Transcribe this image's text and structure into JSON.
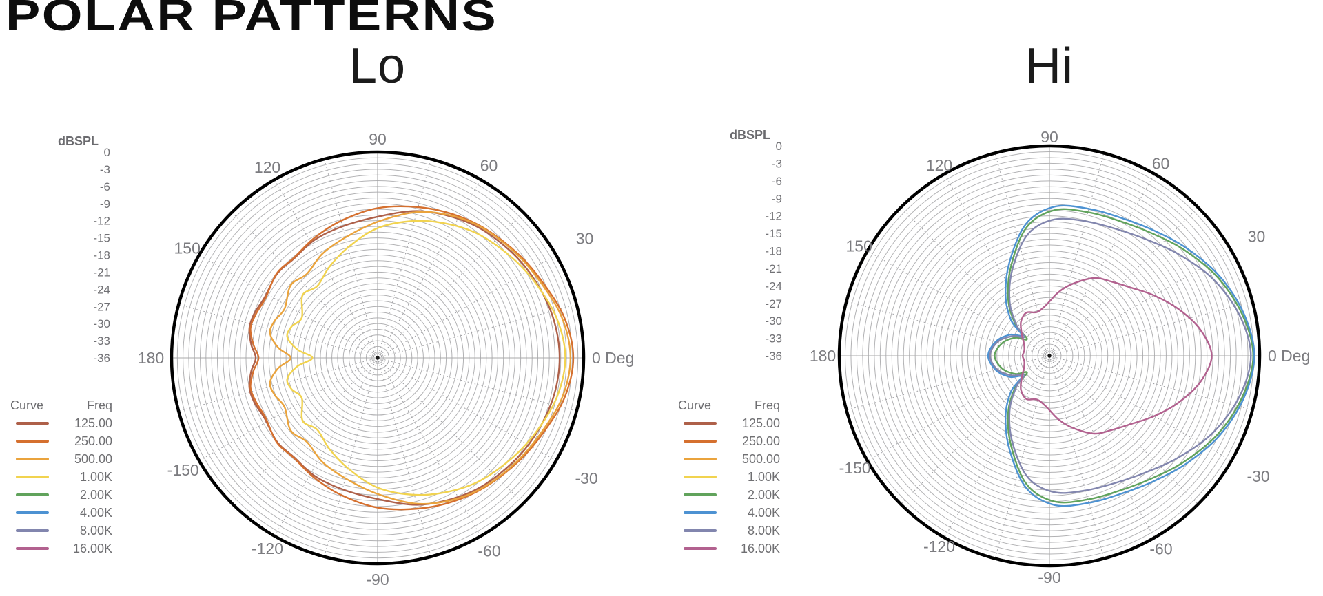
{
  "page": {
    "title": "POLAR PATTERNS",
    "background": "#ffffff"
  },
  "legend": {
    "curve_header": "Curve",
    "freq_header": "Freq",
    "items": [
      {
        "label": "125.00",
        "color": "#ae6049"
      },
      {
        "label": "250.00",
        "color": "#d5702f"
      },
      {
        "label": "500.00",
        "color": "#eaa33c"
      },
      {
        "label": "1.00K",
        "color": "#f1d34f"
      },
      {
        "label": "2.00K",
        "color": "#61a35c"
      },
      {
        "label": "4.00K",
        "color": "#4d92d2"
      },
      {
        "label": "8.00K",
        "color": "#8286ae"
      },
      {
        "label": "16.00K",
        "color": "#b2618f"
      }
    ]
  },
  "chart_data": {
    "type": "polar",
    "scale_label": "dBSPL",
    "db_ticks": [
      "0",
      "-3",
      "-6",
      "-9",
      "-12",
      "-15",
      "-18",
      "-21",
      "-24",
      "-27",
      "-30",
      "-33",
      "-36"
    ],
    "db_min": -36,
    "ring_step_db": 1,
    "spoke_step_deg": 15,
    "angle_unit": "Deg",
    "angle_labels": [
      {
        "deg": 90,
        "text": "90",
        "r": 318
      },
      {
        "deg": 60,
        "text": "60",
        "r": 323
      },
      {
        "deg": 30,
        "text": "30",
        "r": 347
      },
      {
        "deg": 0,
        "text": "0 Deg",
        "r": 0
      },
      {
        "deg": -30,
        "text": "-30",
        "r": 350
      },
      {
        "deg": -60,
        "text": "-60",
        "r": 324
      },
      {
        "deg": -90,
        "text": "-90",
        "r": 322
      },
      {
        "deg": -120,
        "text": "-120",
        "r": 320
      },
      {
        "deg": -150,
        "text": "-150",
        "r": 326
      },
      {
        "deg": 180,
        "text": "180",
        "r": 329
      },
      {
        "deg": 150,
        "text": "150",
        "r": 319
      },
      {
        "deg": 120,
        "text": "120",
        "r": 320
      }
    ],
    "charts": [
      {
        "title": "Lo",
        "series": [
          {
            "freq": "125.00",
            "color": "#ae6049",
            "points": [
              [
                0,
                -4.2
              ],
              [
                12,
                -4.5
              ],
              [
                24,
                -5.2
              ],
              [
                36,
                -6.0
              ],
              [
                50,
                -7.0
              ],
              [
                62,
                -8.1
              ],
              [
                75,
                -9.4
              ],
              [
                90,
                -11.3
              ],
              [
                105,
                -12.2
              ],
              [
                118,
                -12.6
              ],
              [
                130,
                -13.3
              ],
              [
                140,
                -13.1
              ],
              [
                152,
                -13.6
              ],
              [
                160,
                -13.1
              ],
              [
                167,
                -13.0
              ],
              [
                174,
                -13.8
              ],
              [
                180,
                -14.7
              ]
            ]
          },
          {
            "freq": "250.00",
            "color": "#d5702f",
            "points": [
              [
                0,
                -1.8
              ],
              [
                12,
                -2.6
              ],
              [
                24,
                -4.2
              ],
              [
                36,
                -5.4
              ],
              [
                50,
                -6.6
              ],
              [
                62,
                -7.6
              ],
              [
                75,
                -8.7
              ],
              [
                90,
                -9.8
              ],
              [
                105,
                -11.2
              ],
              [
                118,
                -12.3
              ],
              [
                130,
                -13.2
              ],
              [
                140,
                -13.0
              ],
              [
                152,
                -13.8
              ],
              [
                160,
                -13.4
              ],
              [
                167,
                -13.2
              ],
              [
                174,
                -14.2
              ],
              [
                180,
                -15.2
              ]
            ]
          },
          {
            "freq": "500.00",
            "color": "#eaa33c",
            "points": [
              [
                0,
                -2.3
              ],
              [
                12,
                -3.0
              ],
              [
                24,
                -4.5
              ],
              [
                36,
                -5.6
              ],
              [
                50,
                -6.7
              ],
              [
                62,
                -7.9
              ],
              [
                75,
                -9.6
              ],
              [
                90,
                -12.2
              ],
              [
                105,
                -14.2
              ],
              [
                118,
                -15.4
              ],
              [
                130,
                -16.8
              ],
              [
                140,
                -16.2
              ],
              [
                152,
                -17.6
              ],
              [
                160,
                -16.9
              ],
              [
                167,
                -16.7
              ],
              [
                174,
                -18.5
              ],
              [
                180,
                -20.8
              ]
            ]
          },
          {
            "freq": "1.00K",
            "color": "#f1d34f",
            "points": [
              [
                0,
                -3.2
              ],
              [
                12,
                -3.9
              ],
              [
                24,
                -5.3
              ],
              [
                36,
                -6.6
              ],
              [
                50,
                -8.0
              ],
              [
                62,
                -9.5
              ],
              [
                75,
                -11.2
              ],
              [
                90,
                -13.3
              ],
              [
                105,
                -16.0
              ],
              [
                118,
                -18.0
              ],
              [
                130,
                -19.6
              ],
              [
                140,
                -18.9
              ],
              [
                152,
                -21.0
              ],
              [
                160,
                -20.0
              ],
              [
                167,
                -19.8
              ],
              [
                174,
                -21.9
              ],
              [
                180,
                -24.6
              ]
            ]
          }
        ]
      },
      {
        "title": "Hi",
        "series": [
          {
            "freq": "2.00K",
            "color": "#61a35c",
            "points": [
              [
                0,
                -1.1
              ],
              [
                12,
                -2.2
              ],
              [
                25,
                -4.2
              ],
              [
                38,
                -6.6
              ],
              [
                50,
                -8.6
              ],
              [
                62,
                -9.9
              ],
              [
                75,
                -10.5
              ],
              [
                88,
                -11.0
              ],
              [
                100,
                -13.6
              ],
              [
                113,
                -19.2
              ],
              [
                126,
                -24.0
              ],
              [
                137,
                -28.0
              ],
              [
                143,
                -31.2
              ],
              [
                152,
                -29.4
              ],
              [
                165,
                -27.6
              ],
              [
                180,
                -26.6
              ]
            ]
          },
          {
            "freq": "4.00K",
            "color": "#4d92d2",
            "points": [
              [
                0,
                -0.9
              ],
              [
                12,
                -1.9
              ],
              [
                25,
                -3.8
              ],
              [
                38,
                -6.1
              ],
              [
                50,
                -8.0
              ],
              [
                62,
                -9.3
              ],
              [
                75,
                -9.9
              ],
              [
                88,
                -10.4
              ],
              [
                100,
                -13.0
              ],
              [
                113,
                -18.5
              ],
              [
                126,
                -23.2
              ],
              [
                137,
                -27.0
              ],
              [
                143,
                -30.0
              ],
              [
                152,
                -28.3
              ],
              [
                165,
                -26.5
              ],
              [
                180,
                -25.5
              ]
            ]
          },
          {
            "freq": "8.00K",
            "color": "#8286ae",
            "points": [
              [
                0,
                -1.5
              ],
              [
                12,
                -2.7
              ],
              [
                25,
                -5.0
              ],
              [
                38,
                -7.8
              ],
              [
                50,
                -10.0
              ],
              [
                62,
                -11.4
              ],
              [
                75,
                -12.1
              ],
              [
                88,
                -12.6
              ],
              [
                100,
                -14.8
              ],
              [
                113,
                -19.8
              ],
              [
                126,
                -24.4
              ],
              [
                137,
                -28.3
              ],
              [
                143,
                -30.6
              ],
              [
                152,
                -28.8
              ],
              [
                165,
                -26.8
              ],
              [
                180,
                -25.8
              ]
            ]
          },
          {
            "freq": "16.00K",
            "color": "#b2618f",
            "points": [
              [
                0,
                -8.2
              ],
              [
                10,
                -9.8
              ],
              [
                20,
                -12.5
              ],
              [
                30,
                -15.3
              ],
              [
                40,
                -17.8
              ],
              [
                50,
                -19.4
              ],
              [
                60,
                -20.6
              ],
              [
                72,
                -23.0
              ],
              [
                82,
                -25.0
              ],
              [
                94,
                -27.3
              ],
              [
                106,
                -28.2
              ],
              [
                118,
                -27.6
              ],
              [
                130,
                -28.4
              ],
              [
                142,
                -30.0
              ],
              [
                155,
                -31.2
              ],
              [
                168,
                -31.6
              ],
              [
                180,
                -31.4
              ]
            ]
          }
        ]
      }
    ]
  }
}
